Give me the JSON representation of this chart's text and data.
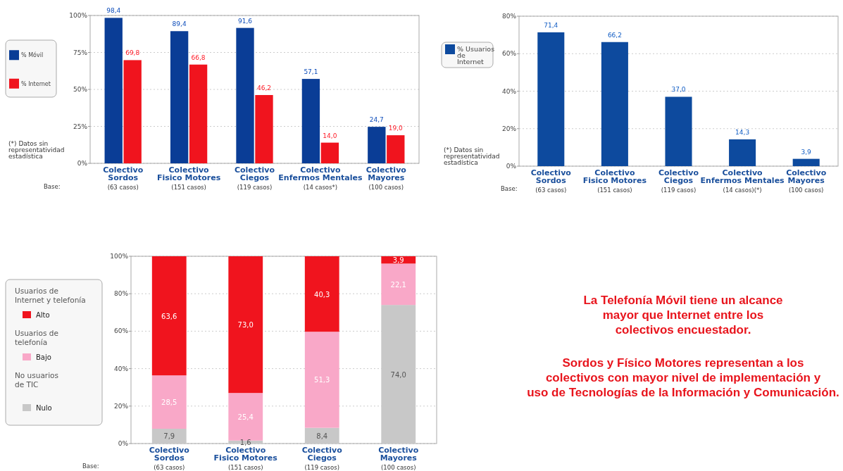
{
  "chart_data": [
    {
      "type": "bar",
      "categories": [
        "Colectivo\nSordos\n(63 casos)",
        "Colectivo\nFisico Motores\n(151 casos)",
        "Colectivo\nCiegos\n(119 casos)",
        "Colectivo\nEnfermos Mentales\n(14 casos*)",
        "Colectivo\nMayores\n(100 casos)"
      ],
      "series": [
        {
          "name": "% Móvil",
          "color": "#0a3d96",
          "values": [
            98.4,
            89.4,
            91.6,
            57.1,
            24.7
          ],
          "value_labels": [
            "98,4",
            "89,4",
            "91,6",
            "57,1",
            "24,7"
          ]
        },
        {
          "name": "% Internet",
          "color": "#f0141e",
          "values": [
            69.8,
            66.8,
            46.2,
            14.0,
            19.0
          ],
          "value_labels": [
            "69,8",
            "66,8",
            "46,2",
            "14,0",
            "19,0"
          ]
        }
      ],
      "ylim": [
        0,
        100
      ],
      "yticks": [
        {
          "value": 0,
          "label": "0%"
        },
        {
          "value": 25,
          "label": "25%"
        },
        {
          "value": 50,
          "label": "50%"
        },
        {
          "value": 75,
          "label": "75%"
        },
        {
          "value": 100,
          "label": "100%"
        }
      ],
      "grid": "y",
      "legend": "left",
      "annotations": [
        "(*) Datos sin\nrepresentatividad\nestadística",
        "Base:"
      ]
    },
    {
      "type": "bar",
      "categories": [
        "Colectivo\nSordos\n(63 casos)",
        "Colectivo\nFisico Motores\n(151 casos)",
        "Colectivo\nCiegos\n(119 casos)",
        "Colectivo\nEnfermos Mentales\n(14 casos)(*)",
        "Colectivo\nMayores\n(100 casos)"
      ],
      "series": [
        {
          "name": "% Usuarios de Internet",
          "color": "#0d4a9e",
          "values": [
            71.4,
            66.2,
            37.0,
            14.3,
            3.9
          ],
          "value_labels": [
            "71,4",
            "66,2",
            "37,0",
            "14,3",
            "3,9"
          ]
        }
      ],
      "ylim": [
        0,
        80
      ],
      "yticks": [
        {
          "value": 0,
          "label": "0%"
        },
        {
          "value": 20,
          "label": "20%"
        },
        {
          "value": 40,
          "label": "40%"
        },
        {
          "value": 60,
          "label": "60%"
        },
        {
          "value": 80,
          "label": "80%"
        }
      ],
      "grid": "y",
      "legend": "left",
      "annotations": [
        "(*) Datos sin\nrepresentatividad\nestadística",
        "Base:"
      ]
    },
    {
      "type": "bar",
      "stacked": true,
      "categories": [
        "Colectivo\nSordos\n(63 casos)",
        "Colectivo\nFisico Motores\n(151 casos)",
        "Colectivo\nCiegos\n(119 casos)",
        "Colectivo\nMayores\n(100 casos)"
      ],
      "series": [
        {
          "name": "Nulo",
          "color": "#c8c8c8",
          "values": [
            7.9,
            1.6,
            8.4,
            74.0
          ],
          "value_labels": [
            "7,9",
            "1,6",
            "8,4",
            "74,0"
          ]
        },
        {
          "name": "Bajo",
          "color": "#f9a8c8",
          "values": [
            28.5,
            25.4,
            51.3,
            22.1
          ],
          "value_labels": [
            "28,5",
            "25,4",
            "51,3",
            "22,1"
          ]
        },
        {
          "name": "Alto",
          "color": "#f0141e",
          "values": [
            63.6,
            73.0,
            40.3,
            3.9
          ],
          "value_labels": [
            "63,6",
            "73,0",
            "40,3",
            "3,9"
          ]
        }
      ],
      "ylim": [
        0,
        100
      ],
      "yticks": [
        {
          "value": 0,
          "label": "0%"
        },
        {
          "value": 20,
          "label": "20%"
        },
        {
          "value": 40,
          "label": "40%"
        },
        {
          "value": 60,
          "label": "60%"
        },
        {
          "value": 80,
          "label": "80%"
        },
        {
          "value": 100,
          "label": "100%"
        }
      ],
      "grid": "y",
      "legend": "left",
      "annotations": [
        "Usuarios de\nInternet y telefonía",
        "Usuarios de\ntelefonía",
        "No usuarios\nde TIC",
        "Base:"
      ]
    },
    {
      "type": "other",
      "annotations": [
        "La Telefonía Móvil tiene un alcance\nmayor que Internet entre los\ncolectivos encuestador.",
        "Sordos y Físico Motores representan a los\ncolectivos con mayor nivel de implementación y\nuso de Tecnologías de la Información y Comunicación."
      ]
    }
  ]
}
